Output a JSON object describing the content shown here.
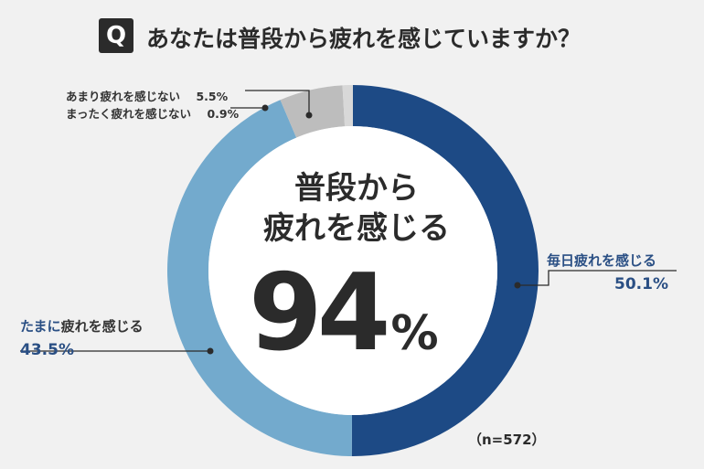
{
  "question": {
    "badge": "Q",
    "text": "あなたは普段から疲れを感じていますか？"
  },
  "center": {
    "line1": "普段から",
    "line2": "疲れを感じる",
    "value": "94",
    "unit": "%"
  },
  "sample": "（n=572）",
  "colors": {
    "every_day": "#1d4a85",
    "sometimes": "#73aacd",
    "rarely": "#bdbdbd",
    "never": "#d8d8d8",
    "background": "#f1f1f1",
    "label_blue": "#2a4f84"
  },
  "chart_data": {
    "type": "pie",
    "donut": true,
    "categories": [
      "毎日疲れを感じる",
      "たまに疲れを感じる",
      "あまり疲れを感じない",
      "まったく疲れを感じない"
    ],
    "values": [
      50.1,
      43.5,
      5.5,
      0.9
    ],
    "labels": [
      {
        "name": "毎日疲れを感じる",
        "value": "50.1%"
      },
      {
        "name_prefix": "たまに",
        "name": "疲れを感じる",
        "value": "43.5%"
      },
      {
        "name": "あまり疲れを感じない",
        "value": "5.5%"
      },
      {
        "name": "まったく疲れを感じない",
        "value": "0.9%"
      }
    ]
  }
}
